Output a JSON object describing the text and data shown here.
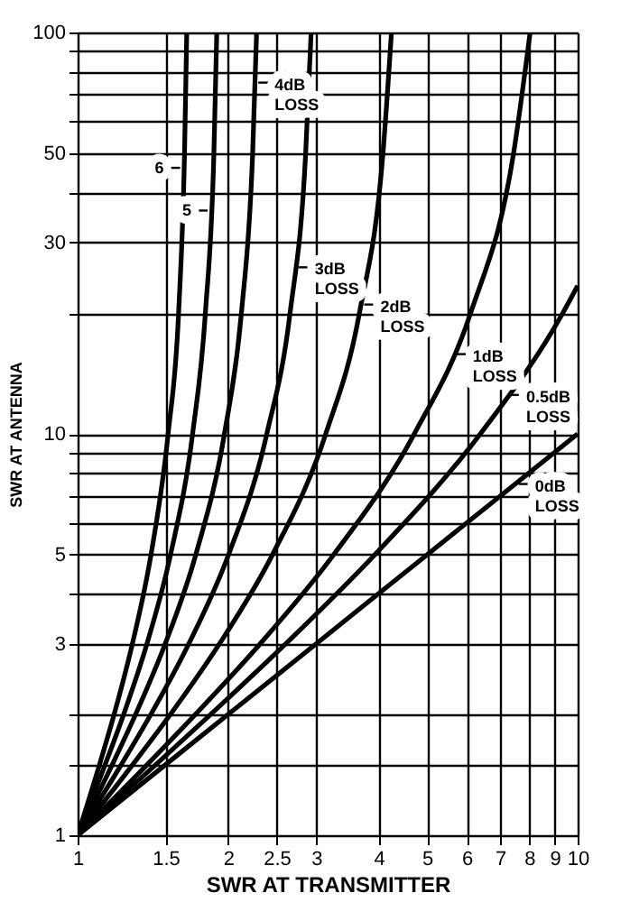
{
  "chart_data": {
    "type": "line",
    "xlabel": "SWR AT TRANSMITTER",
    "ylabel": "SWR AT ANTENNA",
    "xlim": [
      1,
      10
    ],
    "ylim": [
      1,
      100
    ],
    "xticks": [
      1,
      1.5,
      2,
      2.5,
      3,
      4,
      5,
      6,
      7,
      8,
      9,
      10
    ],
    "yticks": [
      1,
      {
        "value": 1.5,
        "label": null
      },
      {
        "value": 2,
        "label": null
      },
      3,
      {
        "value": 4,
        "label": null
      },
      5,
      {
        "value": 6,
        "label": null
      },
      {
        "value": 7,
        "label": null
      },
      {
        "value": 8,
        "label": null
      },
      {
        "value": 9,
        "label": null
      },
      10,
      {
        "value": 20,
        "label": null
      },
      30,
      {
        "value": 40,
        "label": null
      },
      50,
      {
        "value": 60,
        "label": null
      },
      {
        "value": 70,
        "label": null
      },
      {
        "value": 80,
        "label": null
      },
      {
        "value": 90,
        "label": null
      },
      100
    ],
    "log": "xy",
    "grid": true,
    "line_style": "solid",
    "series": [
      {
        "color": "#000000",
        "x": [
          1,
          1.5,
          2,
          3,
          5,
          10
        ],
        "values": [
          1,
          1.5,
          2,
          3,
          5,
          10
        ]
      },
      {
        "color": "#000000",
        "x": [
          1,
          1.434,
          1.845,
          2.608,
          3.929,
          6.388,
          9.34,
          10
        ],
        "values": [
          1,
          1.5,
          2,
          3,
          5,
          10,
          20,
          23.4
        ]
      },
      {
        "color": "#000000",
        "x": [
          1,
          1.378,
          1.72,
          2.318,
          3.251,
          4.713,
          6.109,
          7.445,
          8.034
        ],
        "values": [
          1,
          1.5,
          2,
          3,
          5,
          10,
          20,
          50,
          100
        ]
      },
      {
        "color": "#000000",
        "x": [
          1,
          1.289,
          1.533,
          1.922,
          2.453,
          3.135,
          3.661,
          4.08,
          4.243
        ],
        "values": [
          1,
          1.5,
          2,
          3,
          5,
          10,
          20,
          50,
          100
        ]
      },
      {
        "color": "#000000",
        "x": [
          1,
          1.223,
          1.401,
          1.669,
          2.004,
          2.39,
          2.66,
          2.858,
          2.931
        ],
        "values": [
          1,
          1.5,
          2,
          3,
          5,
          10,
          20,
          50,
          100
        ]
      },
      {
        "color": "#000000",
        "x": [
          1,
          1.173,
          1.306,
          1.497,
          1.723,
          1.966,
          2.126,
          2.239,
          2.28
        ],
        "values": [
          1,
          1.5,
          2,
          3,
          5,
          10,
          20,
          50,
          100
        ]
      },
      {
        "color": "#000000",
        "x": [
          1,
          1.135,
          1.236,
          1.376,
          1.534,
          1.698,
          1.801,
          1.873,
          1.898
        ],
        "values": [
          1,
          1.5,
          2,
          3,
          5,
          10,
          20,
          50,
          100
        ]
      },
      {
        "color": "#000000",
        "x": [
          1,
          1.106,
          1.183,
          1.287,
          1.402,
          1.517,
          1.592,
          1.636,
          1.653
        ],
        "values": [
          1,
          1.5,
          2,
          3,
          5,
          10,
          20,
          50,
          100
        ]
      }
    ],
    "annotations": [
      {
        "text": "6",
        "x": 1.63,
        "y": 46
      },
      {
        "text": "5",
        "x": 1.85,
        "y": 36
      },
      {
        "text": "4dB LOSS",
        "x": 2.26,
        "y": 75
      },
      {
        "text": "3dB LOSS",
        "x": 2.72,
        "y": 26
      },
      {
        "text": "2dB LOSS",
        "x": 3.68,
        "y": 21
      },
      {
        "text": "1dB LOSS",
        "x": 5.63,
        "y": 15.8
      },
      {
        "text": "0.5dB LOSS",
        "x": 7.2,
        "y": 12.5
      },
      {
        "text": "0dB LOSS",
        "x": 7.5,
        "y": 7.5
      }
    ]
  }
}
